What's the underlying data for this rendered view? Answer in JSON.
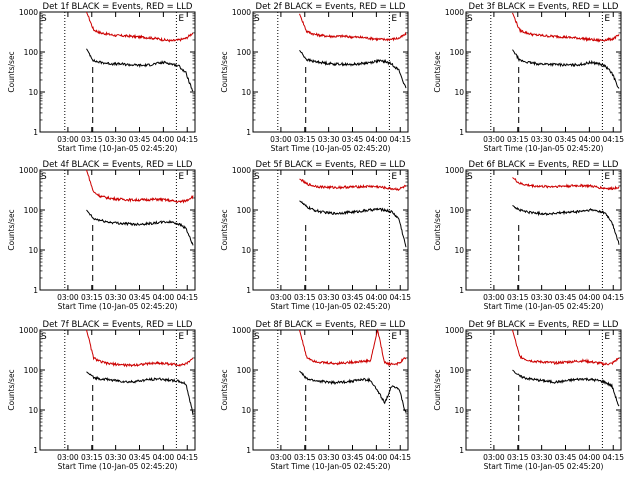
{
  "chart_data": [
    {
      "type": "line",
      "title": "Det 1f  BLACK = Events, RED = LLD",
      "xlabel": "Start Time (10-Jan-05 02:45:20)",
      "ylabel": "Counts/sec",
      "x_ticks": [
        "03:00",
        "03:15",
        "03:30",
        "03:45",
        "04:00",
        "04:15"
      ],
      "y_ticks": [
        "1",
        "10",
        "100",
        "1000"
      ],
      "ylim": [
        1,
        1000
      ],
      "y_scale": "log",
      "marks": {
        "S": "S",
        "E": "E"
      },
      "series": [
        {
          "color": "#cc0000",
          "values": [
            1000,
            360,
            300,
            280,
            260,
            255,
            250,
            240,
            235,
            225,
            215,
            200,
            190,
            200,
            220,
            300
          ]
        },
        {
          "color": "#000000",
          "values": [
            120,
            60,
            55,
            52,
            50,
            50,
            48,
            47,
            46,
            48,
            52,
            55,
            50,
            45,
            30,
            10
          ]
        }
      ]
    },
    {
      "type": "line",
      "title": "Det 2f  BLACK = Events, RED = LLD",
      "xlabel": "Start Time (10-Jan-05 02:45:20)",
      "ylabel": "Counts/sec",
      "x_ticks": [
        "03:00",
        "03:15",
        "03:30",
        "03:45",
        "04:00",
        "04:15"
      ],
      "y_ticks": [
        "1",
        "10",
        "100",
        "1000"
      ],
      "ylim": [
        1,
        1000
      ],
      "y_scale": "log",
      "marks": {
        "S": "S",
        "E": "E"
      },
      "series": [
        {
          "color": "#cc0000",
          "values": [
            900,
            330,
            280,
            260,
            250,
            245,
            250,
            240,
            235,
            230,
            220,
            210,
            205,
            210,
            220,
            280
          ]
        },
        {
          "color": "#000000",
          "values": [
            110,
            65,
            58,
            55,
            52,
            50,
            50,
            48,
            50,
            52,
            55,
            60,
            58,
            50,
            35,
            12
          ]
        }
      ]
    },
    {
      "type": "line",
      "title": "Det 3f  BLACK = Events, RED = LLD",
      "xlabel": "Start Time (10-Jan-05 02:45:20)",
      "ylabel": "Counts/sec",
      "x_ticks": [
        "03:00",
        "03:15",
        "03:30",
        "03:45",
        "04:00",
        "04:15"
      ],
      "y_ticks": [
        "1",
        "10",
        "100",
        "1000"
      ],
      "ylim": [
        1,
        1000
      ],
      "y_scale": "log",
      "marks": {
        "S": "S",
        "E": "E"
      },
      "series": [
        {
          "color": "#cc0000",
          "values": [
            950,
            350,
            300,
            270,
            260,
            250,
            245,
            240,
            230,
            225,
            215,
            205,
            195,
            200,
            210,
            260
          ]
        },
        {
          "color": "#000000",
          "values": [
            115,
            62,
            56,
            52,
            50,
            50,
            49,
            48,
            47,
            48,
            50,
            55,
            52,
            45,
            30,
            12
          ]
        }
      ]
    },
    {
      "type": "line",
      "title": "Det 4f  BLACK = Events, RED = LLD",
      "xlabel": "Start Time (10-Jan-05 02:45:20)",
      "ylabel": "Counts/sec",
      "x_ticks": [
        "03:00",
        "03:15",
        "03:30",
        "03:45",
        "04:00",
        "04:15"
      ],
      "y_ticks": [
        "1",
        "10",
        "100",
        "1000"
      ],
      "ylim": [
        1,
        1000
      ],
      "y_scale": "log",
      "marks": {
        "S": "S",
        "E": "E"
      },
      "series": [
        {
          "color": "#cc0000",
          "values": [
            1000,
            280,
            220,
            200,
            190,
            185,
            180,
            178,
            180,
            182,
            185,
            180,
            170,
            160,
            170,
            220
          ]
        },
        {
          "color": "#000000",
          "values": [
            100,
            60,
            55,
            50,
            48,
            46,
            45,
            44,
            45,
            46,
            48,
            50,
            50,
            45,
            35,
            13
          ]
        }
      ]
    },
    {
      "type": "line",
      "title": "Det 5f  BLACK = Events, RED = LLD",
      "xlabel": "Start Time (10-Jan-05 02:45:20)",
      "ylabel": "Counts/sec",
      "x_ticks": [
        "03:00",
        "03:15",
        "03:30",
        "03:45",
        "04:00",
        "04:15"
      ],
      "y_ticks": [
        "1",
        "10",
        "100",
        "1000"
      ],
      "ylim": [
        1,
        1000
      ],
      "y_scale": "log",
      "marks": {
        "S": "S",
        "E": "E"
      },
      "series": [
        {
          "color": "#cc0000",
          "values": [
            600,
            450,
            400,
            380,
            370,
            365,
            370,
            375,
            380,
            385,
            390,
            380,
            360,
            340,
            330,
            400
          ]
        },
        {
          "color": "#000000",
          "values": [
            170,
            120,
            100,
            90,
            85,
            82,
            85,
            88,
            90,
            95,
            100,
            105,
            100,
            90,
            60,
            12
          ]
        }
      ]
    },
    {
      "type": "line",
      "title": "Det 6f  BLACK = Events, RED = LLD",
      "xlabel": "Start Time (10-Jan-05 02:45:20)",
      "ylabel": "Counts/sec",
      "x_ticks": [
        "03:00",
        "03:15",
        "03:30",
        "03:45",
        "04:00",
        "04:15"
      ],
      "y_ticks": [
        "1",
        "10",
        "100",
        "1000"
      ],
      "ylim": [
        1,
        1000
      ],
      "y_scale": "log",
      "marks": {
        "S": "S",
        "E": "E"
      },
      "series": [
        {
          "color": "#cc0000",
          "values": [
            650,
            460,
            420,
            400,
            390,
            385,
            390,
            395,
            400,
            405,
            410,
            395,
            370,
            350,
            340,
            380
          ]
        },
        {
          "color": "#000000",
          "values": [
            130,
            100,
            90,
            85,
            82,
            80,
            82,
            85,
            88,
            90,
            95,
            100,
            95,
            85,
            50,
            14
          ]
        }
      ]
    },
    {
      "type": "line",
      "title": "Det 7f  BLACK = Events, RED = LLD",
      "xlabel": "Start Time (10-Jan-05 02:45:20)",
      "ylabel": "Counts/sec",
      "x_ticks": [
        "03:00",
        "03:15",
        "03:30",
        "03:45",
        "04:00",
        "04:15"
      ],
      "y_ticks": [
        "1",
        "10",
        "100",
        "1000"
      ],
      "ylim": [
        1,
        1000
      ],
      "y_scale": "log",
      "marks": {
        "S": "S",
        "E": "E"
      },
      "series": [
        {
          "color": "#cc0000",
          "values": [
            1000,
            200,
            160,
            145,
            140,
            135,
            130,
            135,
            140,
            145,
            150,
            145,
            140,
            135,
            140,
            200
          ]
        },
        {
          "color": "#000000",
          "values": [
            90,
            65,
            60,
            58,
            55,
            52,
            50,
            52,
            55,
            58,
            60,
            58,
            55,
            52,
            45,
            8
          ]
        }
      ]
    },
    {
      "type": "line",
      "title": "Det 8f  BLACK = Events, RED = LLD",
      "xlabel": "Start Time (10-Jan-05 02:45:20)",
      "ylabel": "Counts/sec",
      "x_ticks": [
        "03:00",
        "03:15",
        "03:30",
        "03:45",
        "04:00",
        "04:15"
      ],
      "y_ticks": [
        "1",
        "10",
        "100",
        "1000"
      ],
      "ylim": [
        1,
        1000
      ],
      "y_scale": "log",
      "marks": {
        "S": "S",
        "E": "E"
      },
      "series": [
        {
          "color": "#cc0000",
          "values": [
            1000,
            210,
            170,
            155,
            150,
            145,
            150,
            155,
            160,
            165,
            170,
            1000,
            150,
            140,
            145,
            210
          ]
        },
        {
          "color": "#000000",
          "values": [
            95,
            60,
            55,
            52,
            50,
            48,
            50,
            52,
            55,
            58,
            55,
            30,
            15,
            40,
            35,
            8
          ]
        }
      ]
    },
    {
      "type": "line",
      "title": "Det 9f  BLACK = Events, RED = LLD",
      "xlabel": "Start Time (10-Jan-05 02:45:20)",
      "ylabel": "Counts/sec",
      "x_ticks": [
        "03:00",
        "03:15",
        "03:30",
        "03:45",
        "04:00",
        "04:15"
      ],
      "y_ticks": [
        "1",
        "10",
        "100",
        "1000"
      ],
      "ylim": [
        1,
        1000
      ],
      "y_scale": "log",
      "marks": {
        "S": "S",
        "E": "E"
      },
      "series": [
        {
          "color": "#cc0000",
          "values": [
            1000,
            220,
            180,
            165,
            160,
            155,
            150,
            155,
            160,
            165,
            170,
            160,
            150,
            140,
            145,
            200
          ]
        },
        {
          "color": "#000000",
          "values": [
            100,
            70,
            62,
            58,
            55,
            52,
            50,
            52,
            55,
            58,
            60,
            58,
            55,
            50,
            40,
            12
          ]
        }
      ]
    }
  ]
}
